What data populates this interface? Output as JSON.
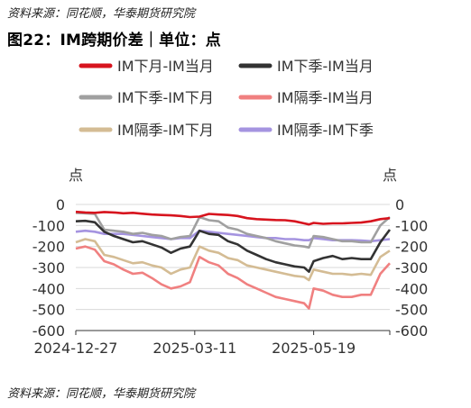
{
  "source_top": "资料来源：同花顺，华泰期货研究院",
  "source_bottom": "资料来源：同花顺，华泰期货研究院",
  "chart_data": {
    "type": "line",
    "title": "图22：IM跨期价差｜单位：点",
    "left_unit": "点",
    "right_unit": "点",
    "ylim": [
      -600,
      0
    ],
    "y_ticks": [
      0,
      -100,
      -200,
      -300,
      -400,
      -500,
      -600
    ],
    "x_tick_labels": [
      "2024-12-27",
      "2025-03-11",
      "2025-05-19"
    ],
    "x_ticks": [
      0,
      0.5,
      1.0
    ],
    "xlim": [
      0,
      1.32
    ],
    "grid": true,
    "legend_position": "top",
    "series": [
      {
        "name": "IM下月-IM当月",
        "color": "#d7141e",
        "x": [
          0,
          0.04,
          0.08,
          0.12,
          0.16,
          0.2,
          0.24,
          0.28,
          0.32,
          0.36,
          0.4,
          0.44,
          0.48,
          0.52,
          0.56,
          0.6,
          0.64,
          0.68,
          0.72,
          0.76,
          0.8,
          0.84,
          0.88,
          0.92,
          0.96,
          0.98,
          1.0,
          1.04,
          1.08,
          1.12,
          1.16,
          1.2,
          1.24,
          1.28,
          1.32
        ],
        "values": [
          -35,
          -38,
          -40,
          -36,
          -38,
          -42,
          -40,
          -44,
          -48,
          -50,
          -52,
          -55,
          -60,
          -58,
          -45,
          -48,
          -50,
          -55,
          -65,
          -70,
          -72,
          -74,
          -75,
          -80,
          -90,
          -95,
          -88,
          -92,
          -90,
          -90,
          -88,
          -86,
          -80,
          -70,
          -65
        ]
      },
      {
        "name": "IM下季-IM当月",
        "color": "#333333",
        "x": [
          0,
          0.04,
          0.08,
          0.12,
          0.16,
          0.2,
          0.24,
          0.28,
          0.32,
          0.36,
          0.4,
          0.44,
          0.48,
          0.52,
          0.56,
          0.6,
          0.64,
          0.68,
          0.72,
          0.76,
          0.8,
          0.84,
          0.88,
          0.92,
          0.96,
          0.98,
          1.0,
          1.04,
          1.08,
          1.12,
          1.16,
          1.2,
          1.24,
          1.28,
          1.32
        ],
        "values": [
          -80,
          -78,
          -85,
          -130,
          -150,
          -165,
          -180,
          -175,
          -190,
          -205,
          -230,
          -210,
          -200,
          -125,
          -140,
          -145,
          -175,
          -190,
          -220,
          -240,
          -260,
          -275,
          -285,
          -295,
          -300,
          -320,
          -270,
          -255,
          -245,
          -260,
          -255,
          -260,
          -260,
          -180,
          -120
        ]
      },
      {
        "name": "IM下季-IM下月",
        "color": "#a0a0a0",
        "x": [
          0,
          0.04,
          0.08,
          0.12,
          0.16,
          0.2,
          0.24,
          0.28,
          0.32,
          0.36,
          0.4,
          0.44,
          0.48,
          0.52,
          0.56,
          0.6,
          0.64,
          0.68,
          0.72,
          0.76,
          0.8,
          0.84,
          0.88,
          0.92,
          0.96,
          0.98,
          1.0,
          1.04,
          1.08,
          1.12,
          1.16,
          1.2,
          1.24,
          1.28,
          1.32
        ],
        "values": [
          -40,
          -42,
          -45,
          -120,
          -125,
          -130,
          -140,
          -135,
          -145,
          -150,
          -165,
          -155,
          -150,
          -60,
          -75,
          -80,
          -110,
          -120,
          -140,
          -150,
          -160,
          -175,
          -185,
          -195,
          -200,
          -205,
          -150,
          -155,
          -165,
          -175,
          -175,
          -180,
          -180,
          -100,
          -60
        ]
      },
      {
        "name": "IM隔季-IM当月",
        "color": "#f08080",
        "x": [
          0,
          0.04,
          0.08,
          0.12,
          0.16,
          0.2,
          0.24,
          0.28,
          0.32,
          0.36,
          0.4,
          0.44,
          0.48,
          0.52,
          0.56,
          0.6,
          0.64,
          0.68,
          0.72,
          0.76,
          0.8,
          0.84,
          0.88,
          0.92,
          0.96,
          0.98,
          1.0,
          1.04,
          1.08,
          1.12,
          1.16,
          1.2,
          1.24,
          1.28,
          1.32
        ],
        "values": [
          -210,
          -200,
          -215,
          -270,
          -285,
          -310,
          -330,
          -325,
          -350,
          -380,
          -400,
          -390,
          -370,
          -250,
          -275,
          -290,
          -330,
          -350,
          -380,
          -400,
          -420,
          -440,
          -450,
          -460,
          -470,
          -495,
          -400,
          -410,
          -430,
          -440,
          -440,
          -430,
          -430,
          -330,
          -280
        ]
      },
      {
        "name": "IM隔季-IM下月",
        "color": "#d4bc94",
        "x": [
          0,
          0.04,
          0.08,
          0.12,
          0.16,
          0.2,
          0.24,
          0.28,
          0.32,
          0.36,
          0.4,
          0.44,
          0.48,
          0.52,
          0.56,
          0.6,
          0.64,
          0.68,
          0.72,
          0.76,
          0.8,
          0.84,
          0.88,
          0.92,
          0.96,
          0.98,
          1.0,
          1.04,
          1.08,
          1.12,
          1.16,
          1.2,
          1.24,
          1.28,
          1.32
        ],
        "values": [
          -180,
          -165,
          -175,
          -240,
          -250,
          -265,
          -280,
          -275,
          -290,
          -300,
          -330,
          -310,
          -300,
          -200,
          -220,
          -230,
          -255,
          -265,
          -290,
          -300,
          -310,
          -320,
          -330,
          -340,
          -345,
          -360,
          -310,
          -320,
          -330,
          -330,
          -335,
          -330,
          -335,
          -250,
          -220
        ]
      },
      {
        "name": "IM隔季-IM下季",
        "color": "#a594e0",
        "x": [
          0,
          0.04,
          0.08,
          0.12,
          0.16,
          0.2,
          0.24,
          0.28,
          0.32,
          0.36,
          0.4,
          0.44,
          0.48,
          0.52,
          0.56,
          0.6,
          0.64,
          0.68,
          0.72,
          0.76,
          0.8,
          0.84,
          0.88,
          0.92,
          0.96,
          0.98,
          1.0,
          1.04,
          1.08,
          1.12,
          1.16,
          1.2,
          1.24,
          1.28,
          1.32
        ],
        "values": [
          -130,
          -125,
          -130,
          -140,
          -140,
          -140,
          -145,
          -150,
          -155,
          -160,
          -165,
          -160,
          -160,
          -125,
          -130,
          -135,
          -140,
          -145,
          -150,
          -155,
          -160,
          -160,
          -165,
          -165,
          -170,
          -170,
          -160,
          -165,
          -170,
          -170,
          -170,
          -172,
          -175,
          -170,
          -165
        ]
      }
    ]
  }
}
